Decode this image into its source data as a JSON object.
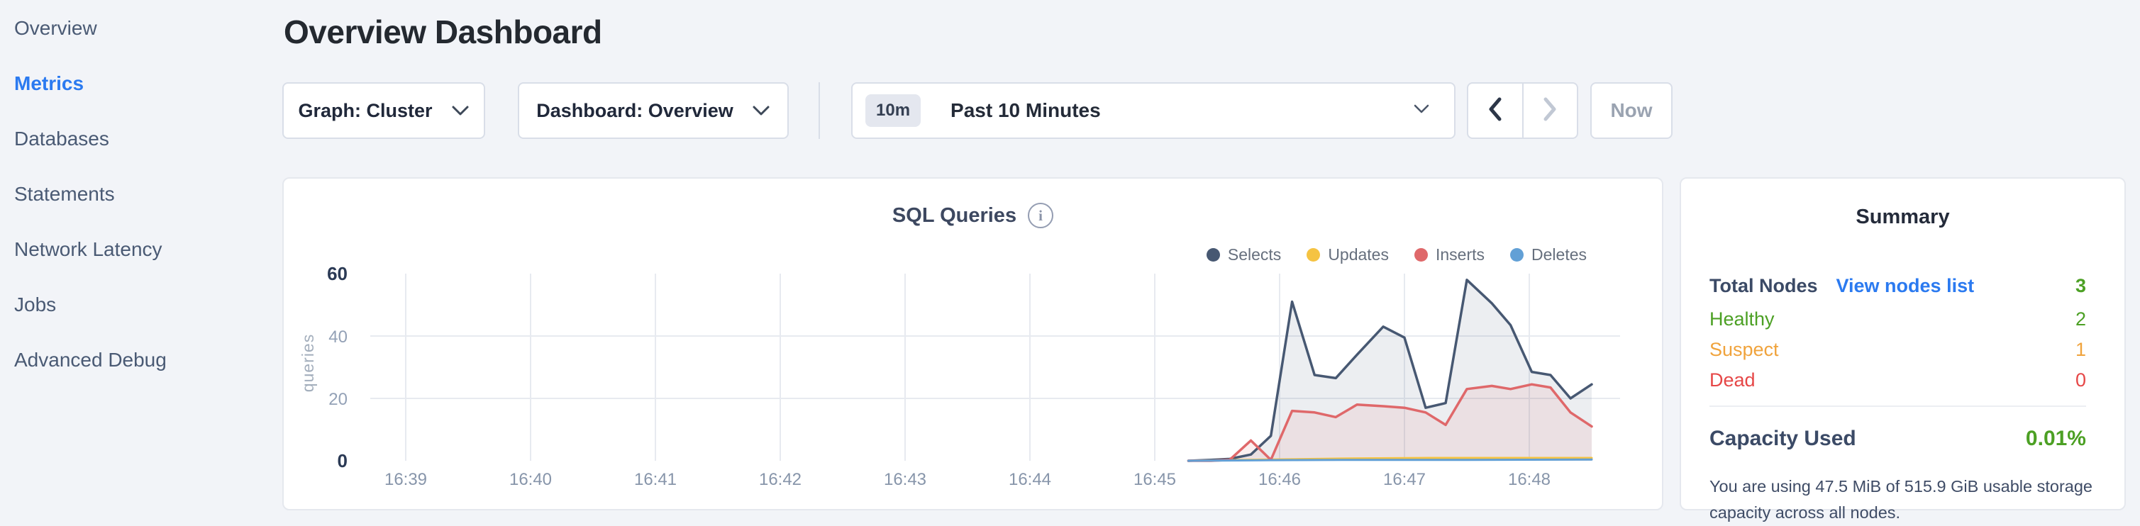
{
  "app": {
    "background": "#f2f4f8"
  },
  "icons": {
    "info": "i",
    "chevron_down": "chevron-down",
    "chevron_left": "chevron-left",
    "chevron_right": "chevron-right"
  },
  "sidebar": {
    "items": [
      {
        "label": "Overview",
        "active": false
      },
      {
        "label": "Metrics",
        "active": true
      },
      {
        "label": "Databases",
        "active": false
      },
      {
        "label": "Statements",
        "active": false
      },
      {
        "label": "Network Latency",
        "active": false
      },
      {
        "label": "Jobs",
        "active": false
      },
      {
        "label": "Advanced Debug",
        "active": false
      }
    ]
  },
  "header": {
    "title": "Overview Dashboard"
  },
  "toolbar": {
    "graph_dropdown": {
      "label": "Graph: Cluster"
    },
    "dashboard_dropdown": {
      "label": "Dashboard: Overview"
    },
    "time_selector": {
      "badge": "10m",
      "label": "Past 10 Minutes"
    },
    "now_button": "Now"
  },
  "chart": {
    "title": "SQL Queries"
  },
  "chart_data": {
    "type": "area",
    "title": "SQL Queries",
    "ylabel": "queries",
    "ylim": [
      0,
      60
    ],
    "grid": true,
    "legend_position": "top-right",
    "grid_color": "#e7eaf0",
    "x_axis": {
      "tick_labels": [
        "16:39",
        "16:40",
        "16:41",
        "16:42",
        "16:43",
        "16:44",
        "16:45",
        "16:46",
        "16:47",
        "16:48"
      ],
      "note": "series t values are minutes after 16:39; data begins ~16:45:16 and ends ~16:48:30"
    },
    "y_ticks": [
      {
        "value": 0,
        "label": "0",
        "bold": true,
        "gridline": false
      },
      {
        "value": 20,
        "label": "20",
        "bold": false,
        "gridline": true
      },
      {
        "value": 40,
        "label": "40",
        "bold": false,
        "gridline": true
      },
      {
        "value": 60,
        "label": "60",
        "bold": true,
        "gridline": false
      }
    ],
    "series": [
      {
        "name": "Selects",
        "color": "#475872",
        "fill": true,
        "fill_opacity": 0.1,
        "line_width": 3.5,
        "points": [
          [
            6.27,
            0
          ],
          [
            6.45,
            0.3
          ],
          [
            6.6,
            0.6
          ],
          [
            6.77,
            2
          ],
          [
            6.93,
            8
          ],
          [
            7.1,
            51
          ],
          [
            7.28,
            27.5
          ],
          [
            7.45,
            26.5
          ],
          [
            7.62,
            34
          ],
          [
            7.83,
            43
          ],
          [
            8.0,
            39.5
          ],
          [
            8.17,
            17
          ],
          [
            8.33,
            18.5
          ],
          [
            8.5,
            58
          ],
          [
            8.7,
            50.5
          ],
          [
            8.85,
            43.5
          ],
          [
            9.02,
            28.5
          ],
          [
            9.17,
            27.5
          ],
          [
            9.33,
            20
          ],
          [
            9.5,
            24.5
          ]
        ]
      },
      {
        "name": "Updates",
        "color": "#f5c342",
        "fill": false,
        "fill_opacity": 0,
        "line_width": 3,
        "points": [
          [
            6.27,
            0
          ],
          [
            6.6,
            0.2
          ],
          [
            6.93,
            0.4
          ],
          [
            7.5,
            0.7
          ],
          [
            8.2,
            0.9
          ],
          [
            8.9,
            0.9
          ],
          [
            9.5,
            0.9
          ]
        ]
      },
      {
        "name": "Inserts",
        "color": "#df686a",
        "fill": true,
        "fill_opacity": 0.1,
        "line_width": 3.5,
        "points": [
          [
            6.27,
            0
          ],
          [
            6.45,
            0
          ],
          [
            6.6,
            0.3
          ],
          [
            6.77,
            6.5
          ],
          [
            6.93,
            0.3
          ],
          [
            7.1,
            16
          ],
          [
            7.28,
            15.5
          ],
          [
            7.45,
            14
          ],
          [
            7.62,
            18
          ],
          [
            7.83,
            17.5
          ],
          [
            8.0,
            17
          ],
          [
            8.17,
            15.5
          ],
          [
            8.33,
            11.5
          ],
          [
            8.5,
            23
          ],
          [
            8.7,
            24
          ],
          [
            8.85,
            23
          ],
          [
            9.02,
            24.5
          ],
          [
            9.17,
            23.5
          ],
          [
            9.33,
            15.5
          ],
          [
            9.5,
            11
          ]
        ]
      },
      {
        "name": "Deletes",
        "color": "#62a0d6",
        "fill": false,
        "fill_opacity": 0,
        "line_width": 3,
        "points": [
          [
            6.27,
            0
          ],
          [
            6.93,
            0.2
          ],
          [
            7.5,
            0.3
          ],
          [
            8.5,
            0.3
          ],
          [
            9.5,
            0.4
          ]
        ]
      }
    ]
  },
  "summary": {
    "title": "Summary",
    "total_nodes": {
      "label": "Total Nodes",
      "link": "View nodes list",
      "value": "3"
    },
    "healthy": {
      "label": "Healthy",
      "value": "2"
    },
    "suspect": {
      "label": "Suspect",
      "value": "1"
    },
    "dead": {
      "label": "Dead",
      "value": "0"
    },
    "capacity": {
      "label": "Capacity Used",
      "value": "0.01%",
      "description": "You are using 47.5 MiB of 515.9 GiB usable storage capacity across all nodes."
    },
    "colors": {
      "green": "#4ca024",
      "orange": "#f0a33c",
      "red": "#e64747",
      "link": "#2b7af0"
    }
  }
}
